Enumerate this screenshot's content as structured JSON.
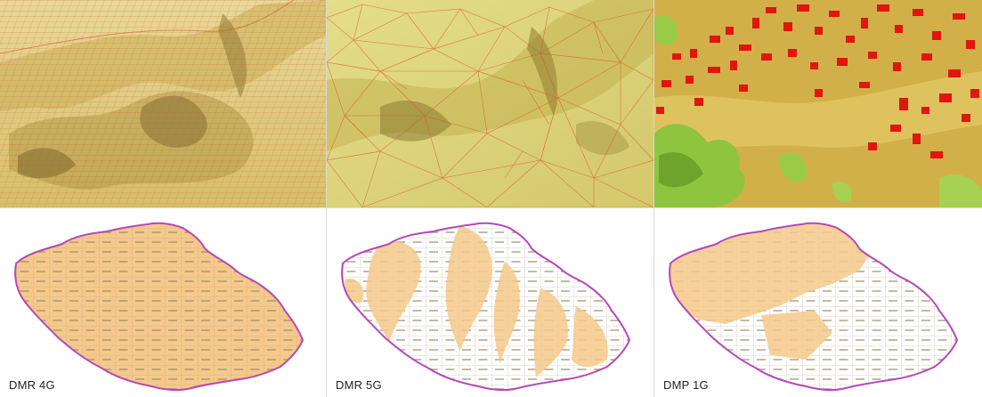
{
  "panels": [
    {
      "caption": "DMR 4G",
      "render_style": "regular-grid-terrain",
      "coverage": "full"
    },
    {
      "caption": "DMR 5G",
      "render_style": "tin-terrain",
      "coverage": "partial"
    },
    {
      "caption": "DMP 1G",
      "render_style": "surface-with-buildings",
      "coverage": "partial"
    }
  ],
  "colors": {
    "terrain_light": "#e6d383",
    "terrain_dark": "#8f7c37",
    "mesh_line": "#d4542d",
    "tin_light": "#dcd978",
    "building": "#e0160f",
    "vegetation": "#8fc43f",
    "tile_fill": "#f5c98a",
    "tile_grid": "#b8a98a",
    "border": "#b548b8"
  }
}
